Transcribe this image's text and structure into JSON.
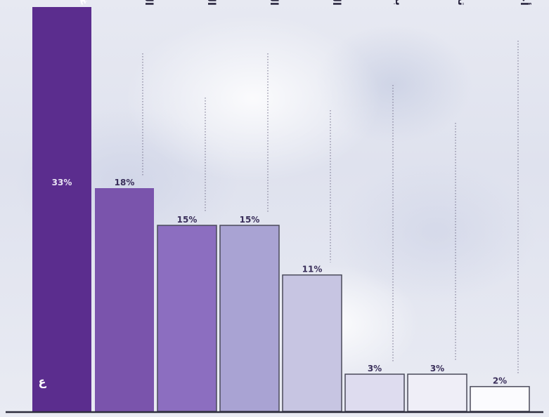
{
  "chart_data": {
    "type": "bar",
    "categories": [
      "غرف النزلاء",
      "المطبخ",
      "الساحات والري",
      "الغسيل",
      "الحمامات العامة",
      "برك السباحة",
      "تدفئة تهوية تكييف",
      "أخرى"
    ],
    "values": [
      33,
      18,
      15,
      15,
      11,
      3,
      3,
      2
    ],
    "value_labels": [
      "33%",
      "18%",
      "15%",
      "15%",
      "11%",
      "3%",
      "3%",
      "2%"
    ],
    "bar_colors": [
      "#5b2d8e",
      "#7a54ac",
      "#8c6ec0",
      "#a9a3d3",
      "#c7c5e2",
      "#dedcef",
      "#efeef7",
      "#fbfbfe"
    ],
    "corner_text": "ع",
    "ylim": [
      0,
      33
    ],
    "grid": "dotted vertical guide lines from labels to bars",
    "legend": "none"
  }
}
